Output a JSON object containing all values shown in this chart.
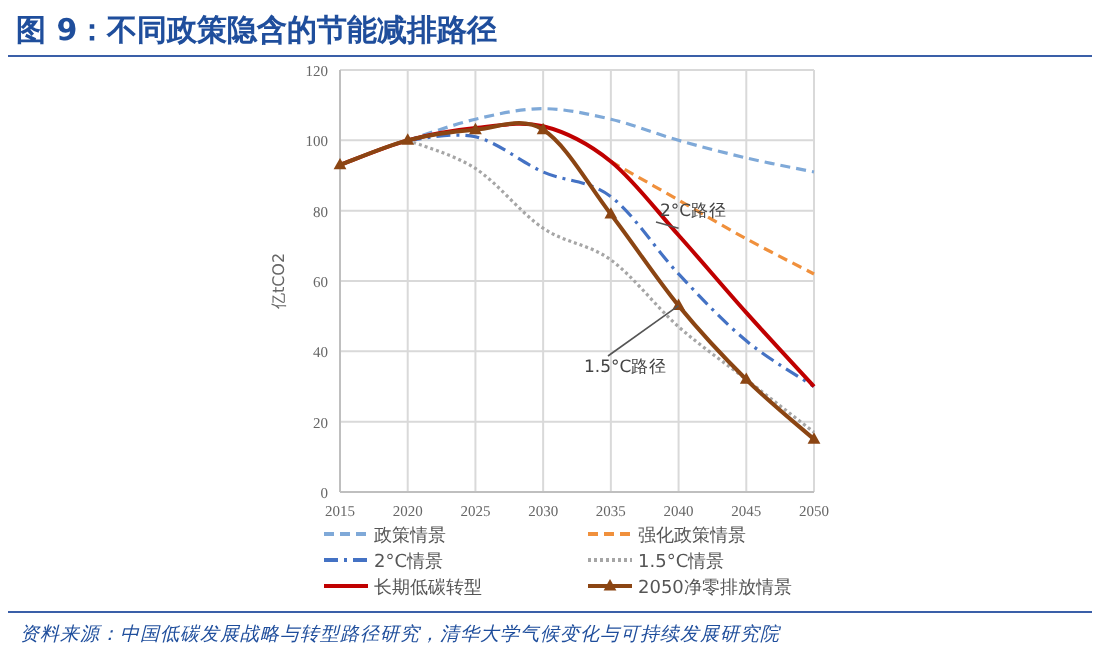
{
  "chart_data": {
    "type": "line",
    "title": "图 9：不同政策隐含的节能减排路径",
    "ylabel": "亿tCO2",
    "x": [
      2015,
      2020,
      2025,
      2030,
      2035,
      2040,
      2045,
      2050
    ],
    "xlim": [
      2015,
      2050
    ],
    "xticks": [
      2015,
      2020,
      2025,
      2030,
      2035,
      2040,
      2045,
      2050
    ],
    "ylim": [
      0,
      120
    ],
    "yticks": [
      0,
      20,
      40,
      60,
      80,
      100,
      120
    ],
    "grid": true,
    "legend": "bottom",
    "series": [
      {
        "name": "政策情景",
        "color": "#7fa9d8",
        "line_style": "dashed",
        "values": [
          null,
          100,
          106,
          109,
          106,
          100,
          95,
          91
        ]
      },
      {
        "name": "强化政策情景",
        "color": "#f0903c",
        "line_style": "dashed",
        "values": [
          null,
          null,
          null,
          null,
          94,
          83,
          72,
          62
        ]
      },
      {
        "name": "2°C情景",
        "color": "#4472c4",
        "line_style": "dashdot",
        "values": [
          null,
          100,
          101,
          91,
          84,
          62,
          43,
          30
        ]
      },
      {
        "name": "1.5°C情景",
        "color": "#a6a6a6",
        "line_style": "dotted",
        "values": [
          null,
          100,
          92,
          75,
          66,
          47,
          32,
          17
        ]
      },
      {
        "name": "长期低碳转型",
        "color": "#c00000",
        "line_style": "solid",
        "values": [
          93,
          100,
          103.5,
          104,
          94,
          73,
          51,
          30
        ]
      },
      {
        "name": "2050净零排放情景",
        "color": "#8b4513",
        "line_style": "solid",
        "marker": "triangle",
        "values": [
          93,
          100,
          103,
          103,
          79,
          53,
          32,
          15
        ]
      }
    ],
    "annotations": [
      {
        "text": "2°C路径",
        "x": 2040,
        "y": 75
      },
      {
        "text": "1.5°C路径",
        "x": 2040,
        "y": 53
      },
      "资料来源：中国低碳发展战略与转型路径研究，清华大学气候变化与可持续发展研究院"
    ]
  }
}
